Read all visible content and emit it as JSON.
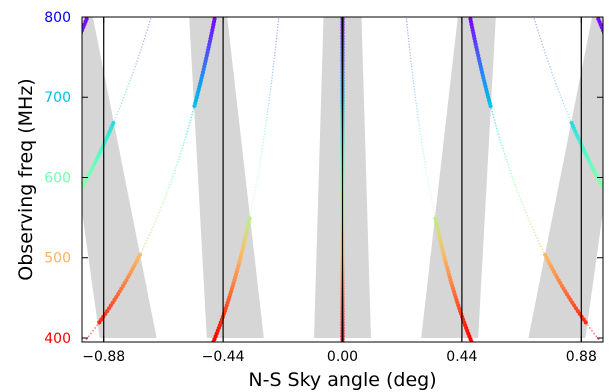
{
  "chart_data": {
    "type": "scatter",
    "title": "",
    "xlabel": "N-S Sky angle (deg)",
    "ylabel": "Observing freq (MHz)",
    "xlim": [
      -0.96,
      0.96
    ],
    "ylim": [
      395,
      800
    ],
    "x_ticks": [
      -0.88,
      -0.44,
      0.0,
      0.44,
      0.88
    ],
    "x_tick_labels": [
      "−0.88",
      "−0.44",
      "0.00",
      "0.44",
      "0.88"
    ],
    "y_ticks": [
      {
        "value": 400,
        "label": "400",
        "color": "#ff0000"
      },
      {
        "value": 500,
        "label": "500",
        "color": "#ffb060"
      },
      {
        "value": 600,
        "label": "600",
        "color": "#70ffb0"
      },
      {
        "value": 700,
        "label": "700",
        "color": "#00c0e8"
      },
      {
        "value": 800,
        "label": "800",
        "color": "#0000ff"
      }
    ],
    "vertical_lines_x": [
      -0.88,
      -0.44,
      0.0,
      0.44,
      0.88
    ],
    "shaded_beam_half_width_deg": [
      {
        "freq": 400,
        "half_width": 0.105
      },
      {
        "freq": 800,
        "half_width": 0.07
      }
    ],
    "shaded_beams_center_x_at_freq": [
      {
        "freq": 400,
        "centers": [
          -0.79,
          -0.395,
          0.0,
          0.395,
          0.79
        ]
      },
      {
        "freq": 800,
        "centers": [
          -0.99,
          -0.495,
          0.0,
          0.495,
          0.99
        ]
      }
    ],
    "grating_lobe_orders": [
      -4,
      -3,
      -2,
      -1,
      0,
      1,
      2,
      3,
      4
    ],
    "grating_lobe_ref": {
      "freq": 800,
      "spacing_deg": 0.235
    },
    "grating_lobe_strong_orders": [
      -4,
      -2,
      0,
      2,
      4
    ],
    "colormap": "rainbow",
    "grid": false,
    "legend": "none"
  }
}
